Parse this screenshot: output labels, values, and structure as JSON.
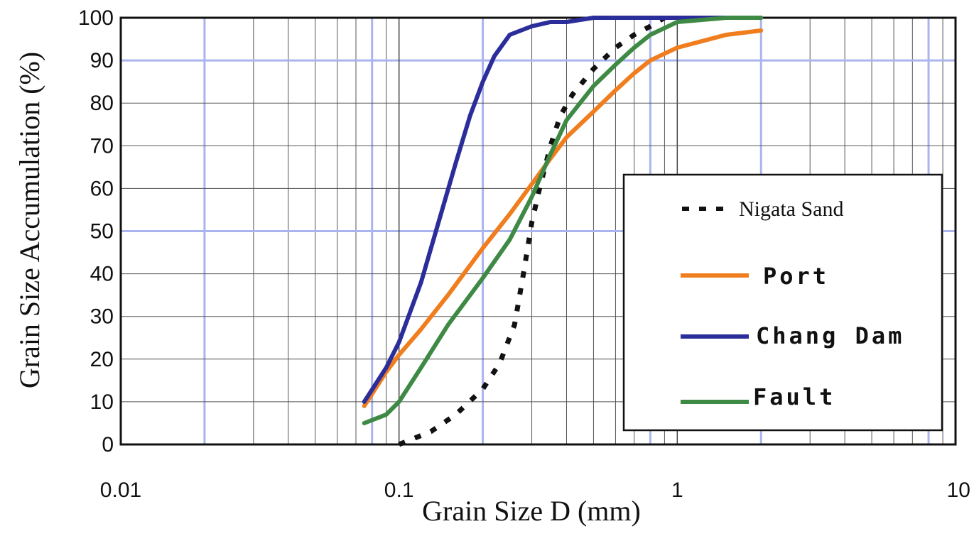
{
  "chart_data": {
    "type": "line",
    "xlabel": "Grain Size D (mm)",
    "ylabel": "Grain Size Accumulation (%)",
    "x_scale": "log",
    "xlim": [
      0.01,
      10
    ],
    "ylim": [
      0,
      100
    ],
    "x_ticks": [
      "0.01",
      "0.1",
      "1",
      "10"
    ],
    "y_ticks": [
      "0",
      "10",
      "20",
      "30",
      "40",
      "50",
      "60",
      "70",
      "80",
      "90",
      "100"
    ],
    "grid": true,
    "legend_position": "right",
    "series": [
      {
        "name": "Nigata Sand",
        "color": "#111111",
        "style": "dotted",
        "points": [
          [
            0.1,
            0
          ],
          [
            0.13,
            3
          ],
          [
            0.16,
            7
          ],
          [
            0.2,
            13
          ],
          [
            0.23,
            19
          ],
          [
            0.26,
            28
          ],
          [
            0.28,
            40
          ],
          [
            0.3,
            52
          ],
          [
            0.32,
            60
          ],
          [
            0.35,
            70
          ],
          [
            0.38,
            77
          ],
          [
            0.42,
            82
          ],
          [
            0.5,
            88
          ],
          [
            0.6,
            93
          ],
          [
            0.7,
            96
          ],
          [
            0.8,
            98
          ],
          [
            0.9,
            100
          ]
        ]
      },
      {
        "name": "Port",
        "color": "#f07d1e",
        "style": "solid",
        "points": [
          [
            0.075,
            9
          ],
          [
            0.09,
            17
          ],
          [
            0.1,
            21
          ],
          [
            0.12,
            27
          ],
          [
            0.15,
            35
          ],
          [
            0.2,
            46
          ],
          [
            0.25,
            54
          ],
          [
            0.3,
            61
          ],
          [
            0.35,
            67
          ],
          [
            0.4,
            72
          ],
          [
            0.5,
            78
          ],
          [
            0.6,
            83
          ],
          [
            0.7,
            87
          ],
          [
            0.8,
            90
          ],
          [
            1.0,
            93
          ],
          [
            1.5,
            96
          ],
          [
            2.0,
            97
          ]
        ]
      },
      {
        "name": "Chang Dam",
        "color": "#2b2e9a",
        "style": "solid",
        "points": [
          [
            0.075,
            10
          ],
          [
            0.09,
            18
          ],
          [
            0.1,
            24
          ],
          [
            0.12,
            38
          ],
          [
            0.14,
            53
          ],
          [
            0.16,
            66
          ],
          [
            0.18,
            77
          ],
          [
            0.2,
            85
          ],
          [
            0.22,
            91
          ],
          [
            0.25,
            96
          ],
          [
            0.3,
            98
          ],
          [
            0.35,
            99
          ],
          [
            0.4,
            99
          ],
          [
            0.5,
            100
          ],
          [
            1.0,
            100
          ],
          [
            2.0,
            100
          ]
        ]
      },
      {
        "name": "Fault",
        "color": "#3e8a45",
        "style": "solid",
        "points": [
          [
            0.075,
            5
          ],
          [
            0.09,
            7
          ],
          [
            0.1,
            10
          ],
          [
            0.12,
            18
          ],
          [
            0.15,
            28
          ],
          [
            0.2,
            39
          ],
          [
            0.25,
            48
          ],
          [
            0.3,
            58
          ],
          [
            0.35,
            68
          ],
          [
            0.4,
            76
          ],
          [
            0.5,
            84
          ],
          [
            0.6,
            89
          ],
          [
            0.7,
            93
          ],
          [
            0.8,
            96
          ],
          [
            1.0,
            99
          ],
          [
            1.5,
            100
          ],
          [
            2.0,
            100
          ]
        ]
      }
    ]
  },
  "legend": {
    "items": [
      {
        "label": "- - - Nigata Sand",
        "style": "dotted"
      },
      {
        "label": "Port",
        "style": "solid"
      },
      {
        "label": "Chang Dam",
        "style": "solid"
      },
      {
        "label": "Fault",
        "style": "solid"
      }
    ]
  }
}
